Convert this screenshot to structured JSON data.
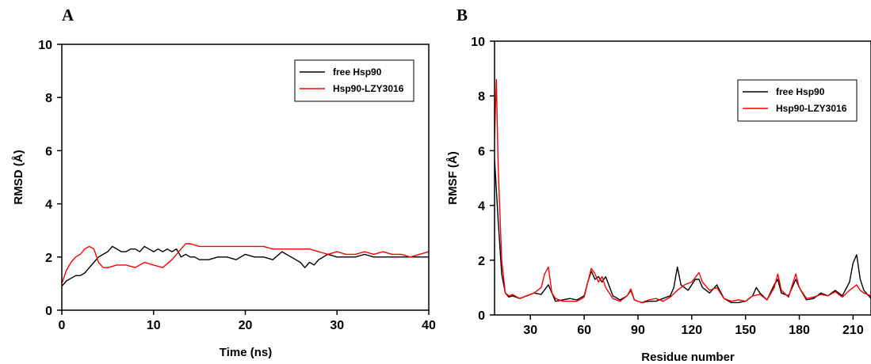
{
  "chart_data": [
    {
      "panel": "A",
      "type": "line",
      "xlabel": "Time (ns)",
      "ylabel": "RMSD (Å)",
      "xlim": [
        0,
        40
      ],
      "ylim": [
        0,
        10
      ],
      "xticks": [
        0,
        10,
        20,
        30,
        40
      ],
      "yticks": [
        0,
        2,
        4,
        6,
        8,
        10
      ],
      "grid": false,
      "legend_position": "top-right",
      "series": [
        {
          "name": "free Hsp90",
          "color": "#000000",
          "x": [
            0,
            0.5,
            1,
            1.5,
            2,
            2.5,
            3,
            3.5,
            4,
            4.5,
            5,
            5.5,
            6,
            6.5,
            7,
            7.5,
            8,
            8.5,
            9,
            9.5,
            10,
            10.5,
            11,
            11.5,
            12,
            12.5,
            13,
            13.5,
            14,
            14.5,
            15,
            16,
            17,
            18,
            19,
            20,
            21,
            22,
            23,
            24,
            25,
            25.5,
            26,
            26.5,
            27,
            27.5,
            28,
            29,
            30,
            31,
            32,
            33,
            34,
            35,
            36,
            37,
            38,
            39,
            40
          ],
          "y": [
            0.9,
            1.1,
            1.2,
            1.3,
            1.3,
            1.4,
            1.6,
            1.8,
            2.0,
            2.1,
            2.2,
            2.4,
            2.3,
            2.2,
            2.2,
            2.3,
            2.3,
            2.2,
            2.4,
            2.3,
            2.2,
            2.3,
            2.2,
            2.3,
            2.2,
            2.3,
            2.0,
            2.1,
            2.0,
            2.0,
            1.9,
            1.9,
            2.0,
            2.0,
            1.9,
            2.1,
            2.0,
            2.0,
            1.9,
            2.2,
            2.0,
            1.9,
            1.8,
            1.6,
            1.8,
            1.7,
            1.9,
            2.1,
            2.0,
            2.0,
            2.0,
            2.1,
            2.0,
            2.0,
            2.0,
            2.0,
            2.0,
            2.0,
            2.0
          ]
        },
        {
          "name": "Hsp90-LZY3016",
          "color": "#ff0000",
          "x": [
            0,
            0.5,
            1,
            1.5,
            2,
            2.5,
            3,
            3.5,
            4,
            4.5,
            5,
            6,
            7,
            8,
            9,
            10,
            11,
            12,
            12.5,
            13,
            13.5,
            14,
            15,
            16,
            17,
            18,
            19,
            20,
            21,
            22,
            23,
            24,
            25,
            26,
            27,
            28,
            29,
            30,
            31,
            32,
            33,
            34,
            35,
            36,
            37,
            38,
            39,
            40
          ],
          "y": [
            1.0,
            1.5,
            1.8,
            2.0,
            2.1,
            2.3,
            2.4,
            2.3,
            1.8,
            1.6,
            1.6,
            1.7,
            1.7,
            1.6,
            1.8,
            1.7,
            1.6,
            1.9,
            2.1,
            2.3,
            2.5,
            2.5,
            2.4,
            2.4,
            2.4,
            2.4,
            2.4,
            2.4,
            2.4,
            2.4,
            2.3,
            2.3,
            2.3,
            2.3,
            2.3,
            2.2,
            2.1,
            2.2,
            2.1,
            2.1,
            2.2,
            2.1,
            2.2,
            2.1,
            2.1,
            2.0,
            2.1,
            2.2
          ]
        }
      ]
    },
    {
      "panel": "B",
      "type": "line",
      "xlabel": "Residue number",
      "ylabel": "RMSF (Å)",
      "xlim": [
        10,
        220
      ],
      "ylim": [
        0,
        10
      ],
      "xticks": [
        30,
        60,
        90,
        120,
        150,
        180,
        210
      ],
      "yticks": [
        0,
        2,
        4,
        6,
        8,
        10
      ],
      "grid": false,
      "legend_position": "top-right",
      "series": [
        {
          "name": "free Hsp90",
          "color": "#000000",
          "x": [
            10,
            12,
            14,
            16,
            18,
            20,
            24,
            28,
            32,
            36,
            40,
            44,
            48,
            52,
            56,
            60,
            62,
            64,
            66,
            68,
            70,
            72,
            76,
            80,
            84,
            86,
            88,
            92,
            96,
            100,
            104,
            108,
            110,
            112,
            114,
            118,
            122,
            124,
            126,
            130,
            134,
            138,
            142,
            146,
            150,
            154,
            156,
            158,
            162,
            166,
            168,
            170,
            174,
            178,
            180,
            184,
            188,
            192,
            196,
            200,
            204,
            208,
            210,
            212,
            214,
            216,
            220
          ],
          "y": [
            5.7,
            3.5,
            1.5,
            0.8,
            0.65,
            0.7,
            0.6,
            0.7,
            0.8,
            0.75,
            1.1,
            0.5,
            0.55,
            0.6,
            0.55,
            0.7,
            1.2,
            1.6,
            1.3,
            1.4,
            1.2,
            1.4,
            0.7,
            0.55,
            0.7,
            0.9,
            0.55,
            0.45,
            0.5,
            0.5,
            0.6,
            0.7,
            1.0,
            1.75,
            1.1,
            0.9,
            1.3,
            1.3,
            1.0,
            0.8,
            1.1,
            0.6,
            0.45,
            0.45,
            0.5,
            0.7,
            1.0,
            0.8,
            0.55,
            1.1,
            1.3,
            0.8,
            0.7,
            1.3,
            1.0,
            0.55,
            0.6,
            0.8,
            0.7,
            0.9,
            0.7,
            1.2,
            1.9,
            2.2,
            1.3,
            0.9,
            0.6
          ]
        },
        {
          "name": "Hsp90-LZY3016",
          "color": "#ff0000",
          "x": [
            10,
            11,
            12,
            14,
            16,
            18,
            20,
            24,
            28,
            32,
            36,
            38,
            40,
            42,
            44,
            48,
            52,
            56,
            60,
            62,
            64,
            66,
            68,
            70,
            72,
            76,
            80,
            84,
            86,
            88,
            92,
            96,
            100,
            104,
            108,
            112,
            116,
            120,
            124,
            126,
            130,
            134,
            138,
            142,
            146,
            150,
            154,
            158,
            162,
            166,
            168,
            170,
            174,
            178,
            180,
            184,
            188,
            192,
            196,
            200,
            204,
            208,
            210,
            212,
            214,
            216,
            220
          ],
          "y": [
            6.5,
            8.6,
            5.5,
            2.0,
            0.8,
            0.7,
            0.75,
            0.6,
            0.7,
            0.8,
            1.0,
            1.5,
            1.75,
            0.8,
            0.6,
            0.5,
            0.5,
            0.5,
            0.65,
            1.2,
            1.7,
            1.5,
            1.2,
            1.4,
            1.0,
            0.6,
            0.5,
            0.7,
            0.95,
            0.55,
            0.45,
            0.55,
            0.6,
            0.5,
            0.65,
            0.9,
            1.1,
            1.2,
            1.55,
            1.2,
            0.9,
            1.0,
            0.6,
            0.5,
            0.55,
            0.5,
            0.7,
            0.75,
            0.55,
            1.0,
            1.5,
            0.9,
            0.65,
            1.5,
            1.0,
            0.6,
            0.65,
            0.75,
            0.7,
            0.85,
            0.65,
            0.9,
            1.0,
            1.1,
            0.9,
            0.8,
            0.7
          ]
        }
      ]
    }
  ]
}
